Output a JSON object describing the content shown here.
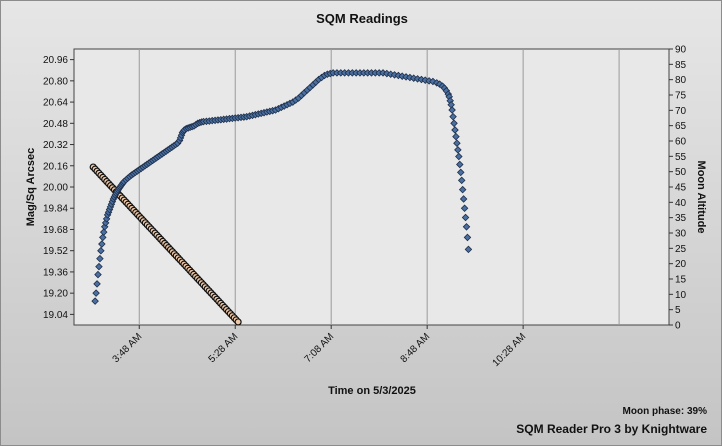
{
  "chart_data": {
    "type": "scatter",
    "title": "SQM Readings",
    "xlabel": "Time on 5/3/2025",
    "ylabel": "Mag/Sq Arcsec",
    "y2label": "Moon Altitude",
    "x_unit": "minutes since midnight on 5/3/2025",
    "xlim": [
      160,
      780
    ],
    "x_ticks": [
      {
        "x": 228,
        "label": "3:48 AM"
      },
      {
        "x": 328,
        "label": "5:28 AM"
      },
      {
        "x": 428,
        "label": "7:08 AM"
      },
      {
        "x": 528,
        "label": "8:48 AM"
      },
      {
        "x": 628,
        "label": "10:28 AM"
      }
    ],
    "x_gridlines": [
      228,
      328,
      428,
      528,
      628,
      728
    ],
    "ylim": [
      18.96,
      21.04
    ],
    "y_ticks": [
      19.04,
      19.2,
      19.36,
      19.52,
      19.68,
      19.84,
      20.0,
      20.16,
      20.32,
      20.48,
      20.64,
      20.8,
      20.96
    ],
    "y2lim": [
      0,
      90
    ],
    "y2_ticks": [
      0,
      5,
      10,
      15,
      20,
      25,
      30,
      35,
      40,
      45,
      50,
      55,
      60,
      65,
      70,
      75,
      80,
      85,
      90
    ],
    "grid": true,
    "series": [
      {
        "name": "SQM Readings",
        "axis": "left",
        "color": "#4a6fa0",
        "marker": "diamond",
        "points": [
          [
            182,
            19.14
          ],
          [
            183,
            19.2
          ],
          [
            184,
            19.27
          ],
          [
            185,
            19.34
          ],
          [
            186,
            19.4
          ],
          [
            187,
            19.46
          ],
          [
            188,
            19.52
          ],
          [
            189,
            19.57
          ],
          [
            190,
            19.62
          ],
          [
            191,
            19.66
          ],
          [
            192,
            19.7
          ],
          [
            193,
            19.73
          ],
          [
            194,
            19.76
          ],
          [
            195,
            19.79
          ],
          [
            196,
            19.81
          ],
          [
            197,
            19.83
          ],
          [
            198,
            19.85
          ],
          [
            199,
            19.87
          ],
          [
            200,
            19.89
          ],
          [
            201,
            19.91
          ],
          [
            202,
            19.925
          ],
          [
            203,
            19.94
          ],
          [
            204,
            19.953
          ],
          [
            205,
            19.966
          ],
          [
            206,
            19.978
          ],
          [
            207,
            19.99
          ],
          [
            208,
            20.0
          ],
          [
            209,
            20.01
          ],
          [
            210,
            20.02
          ],
          [
            211,
            20.03
          ],
          [
            212,
            20.04
          ],
          [
            214,
            20.053
          ],
          [
            216,
            20.066
          ],
          [
            218,
            20.078
          ],
          [
            220,
            20.09
          ],
          [
            222,
            20.1
          ],
          [
            224,
            20.11
          ],
          [
            226,
            20.12
          ],
          [
            228,
            20.13
          ],
          [
            230,
            20.14
          ],
          [
            232,
            20.15
          ],
          [
            234,
            20.16
          ],
          [
            236,
            20.17
          ],
          [
            238,
            20.18
          ],
          [
            240,
            20.19
          ],
          [
            242,
            20.2
          ],
          [
            244,
            20.21
          ],
          [
            246,
            20.22
          ],
          [
            248,
            20.23
          ],
          [
            250,
            20.24
          ],
          [
            252,
            20.25
          ],
          [
            254,
            20.26
          ],
          [
            256,
            20.27
          ],
          [
            258,
            20.28
          ],
          [
            260,
            20.29
          ],
          [
            262,
            20.3
          ],
          [
            264,
            20.31
          ],
          [
            266,
            20.32
          ],
          [
            268,
            20.33
          ],
          [
            270,
            20.35
          ],
          [
            271,
            20.37
          ],
          [
            272,
            20.39
          ],
          [
            273,
            20.41
          ],
          [
            274,
            20.42
          ],
          [
            275,
            20.43
          ],
          [
            277,
            20.44
          ],
          [
            279,
            20.445
          ],
          [
            281,
            20.45
          ],
          [
            283,
            20.455
          ],
          [
            285,
            20.46
          ],
          [
            287,
            20.47
          ],
          [
            289,
            20.48
          ],
          [
            291,
            20.485
          ],
          [
            293,
            20.49
          ],
          [
            295,
            20.493
          ],
          [
            298,
            20.495
          ],
          [
            301,
            20.497
          ],
          [
            304,
            20.5
          ],
          [
            307,
            20.502
          ],
          [
            310,
            20.505
          ],
          [
            313,
            20.507
          ],
          [
            316,
            20.51
          ],
          [
            319,
            20.512
          ],
          [
            322,
            20.515
          ],
          [
            325,
            20.517
          ],
          [
            328,
            20.52
          ],
          [
            331,
            20.522
          ],
          [
            334,
            20.525
          ],
          [
            337,
            20.527
          ],
          [
            340,
            20.53
          ],
          [
            343,
            20.535
          ],
          [
            346,
            20.54
          ],
          [
            349,
            20.545
          ],
          [
            352,
            20.55
          ],
          [
            355,
            20.555
          ],
          [
            358,
            20.56
          ],
          [
            361,
            20.565
          ],
          [
            364,
            20.57
          ],
          [
            367,
            20.575
          ],
          [
            370,
            20.58
          ],
          [
            373,
            20.59
          ],
          [
            376,
            20.6
          ],
          [
            379,
            20.61
          ],
          [
            382,
            20.62
          ],
          [
            385,
            20.63
          ],
          [
            388,
            20.64
          ],
          [
            391,
            20.655
          ],
          [
            394,
            20.67
          ],
          [
            397,
            20.69
          ],
          [
            400,
            20.71
          ],
          [
            403,
            20.73
          ],
          [
            406,
            20.75
          ],
          [
            409,
            20.77
          ],
          [
            412,
            20.79
          ],
          [
            415,
            20.81
          ],
          [
            418,
            20.825
          ],
          [
            421,
            20.84
          ],
          [
            424,
            20.85
          ],
          [
            427,
            20.855
          ],
          [
            430,
            20.86
          ],
          [
            434,
            20.86
          ],
          [
            438,
            20.86
          ],
          [
            442,
            20.86
          ],
          [
            446,
            20.86
          ],
          [
            450,
            20.86
          ],
          [
            454,
            20.86
          ],
          [
            458,
            20.86
          ],
          [
            462,
            20.86
          ],
          [
            466,
            20.86
          ],
          [
            470,
            20.86
          ],
          [
            474,
            20.86
          ],
          [
            478,
            20.86
          ],
          [
            482,
            20.86
          ],
          [
            486,
            20.855
          ],
          [
            490,
            20.85
          ],
          [
            494,
            20.845
          ],
          [
            498,
            20.84
          ],
          [
            502,
            20.835
          ],
          [
            506,
            20.83
          ],
          [
            510,
            20.825
          ],
          [
            514,
            20.82
          ],
          [
            518,
            20.815
          ],
          [
            522,
            20.81
          ],
          [
            526,
            20.805
          ],
          [
            530,
            20.8
          ],
          [
            534,
            20.795
          ],
          [
            538,
            20.785
          ],
          [
            541,
            20.775
          ],
          [
            544,
            20.76
          ],
          [
            546,
            20.745
          ],
          [
            548,
            20.725
          ],
          [
            550,
            20.7
          ],
          [
            551,
            20.68
          ],
          [
            552,
            20.65
          ],
          [
            553,
            20.62
          ],
          [
            554,
            20.58
          ],
          [
            555,
            20.53
          ],
          [
            556,
            20.48
          ],
          [
            557,
            20.43
          ],
          [
            558,
            20.38
          ],
          [
            559,
            20.33
          ],
          [
            560,
            20.28
          ],
          [
            561,
            20.23
          ],
          [
            562,
            20.17
          ],
          [
            563,
            20.11
          ],
          [
            564,
            20.05
          ],
          [
            565,
            19.98
          ],
          [
            566,
            19.91
          ],
          [
            567,
            19.84
          ],
          [
            568,
            19.77
          ],
          [
            569,
            19.7
          ],
          [
            570,
            19.62
          ],
          [
            571,
            19.53
          ]
        ]
      },
      {
        "name": "Moon Altitude",
        "axis": "right",
        "color": "#f0c9a8",
        "edge": "#111111",
        "marker": "circle",
        "x_start": 180,
        "x_end": 331,
        "y_start": 51.5,
        "y_end": 1.0,
        "count": 76
      }
    ],
    "annotations": [
      "Moon phase: 39%",
      "SQM Reader Pro 3 by Knightware"
    ]
  },
  "footer": {
    "moon_phase": "Moon phase: 39%",
    "credit": "SQM Reader Pro 3 by Knightware"
  }
}
